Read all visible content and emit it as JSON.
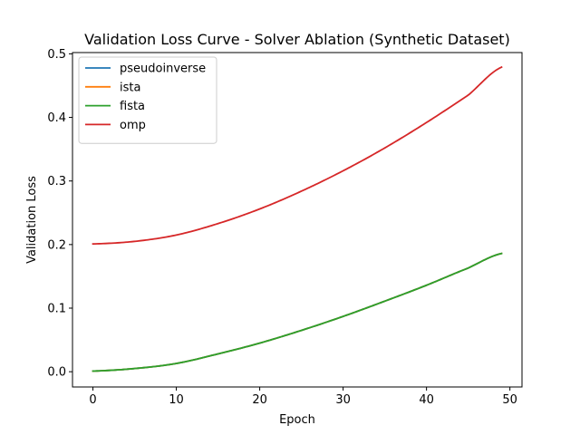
{
  "chart_data": {
    "type": "line",
    "title": "Validation Loss Curve - Solver Ablation (Synthetic Dataset)",
    "xlabel": "Epoch",
    "ylabel": "Validation Loss",
    "xlim": [
      -2.45,
      51.45
    ],
    "ylim": [
      -0.024,
      0.502
    ],
    "xticks": [
      0,
      10,
      20,
      30,
      40,
      50
    ],
    "xtick_labels": [
      "0",
      "10",
      "20",
      "30",
      "40",
      "50"
    ],
    "yticks": [
      0.0,
      0.1,
      0.2,
      0.3,
      0.4,
      0.5
    ],
    "ytick_labels": [
      "0.0",
      "0.1",
      "0.2",
      "0.3",
      "0.4",
      "0.5"
    ],
    "grid": false,
    "legend_position": "upper-left",
    "x_range": [
      0,
      49
    ],
    "series": [
      {
        "name": "pseudoinverse",
        "color": "#1f77b4",
        "x": [
          0,
          5,
          10,
          15,
          20,
          25,
          30,
          35,
          40,
          45,
          49
        ],
        "values": [
          0.001,
          0.005,
          0.013,
          0.028,
          0.045,
          0.065,
          0.087,
          0.111,
          0.136,
          0.163,
          0.186
        ]
      },
      {
        "name": "ista",
        "color": "#ff7f0e",
        "x": [
          0,
          5,
          10,
          15,
          20,
          25,
          30,
          35,
          40,
          45,
          49
        ],
        "values": [
          0.001,
          0.005,
          0.013,
          0.028,
          0.045,
          0.065,
          0.087,
          0.111,
          0.136,
          0.163,
          0.186
        ]
      },
      {
        "name": "fista",
        "color": "#2ca02c",
        "x": [
          0,
          5,
          10,
          15,
          20,
          25,
          30,
          35,
          40,
          45,
          49
        ],
        "values": [
          0.001,
          0.005,
          0.013,
          0.028,
          0.045,
          0.065,
          0.087,
          0.111,
          0.136,
          0.163,
          0.186
        ]
      },
      {
        "name": "omp",
        "color": "#d62728",
        "x": [
          0,
          5,
          10,
          15,
          20,
          25,
          30,
          35,
          40,
          45,
          49
        ],
        "values": [
          0.201,
          0.205,
          0.215,
          0.233,
          0.256,
          0.284,
          0.316,
          0.352,
          0.392,
          0.435,
          0.479
        ]
      }
    ]
  }
}
